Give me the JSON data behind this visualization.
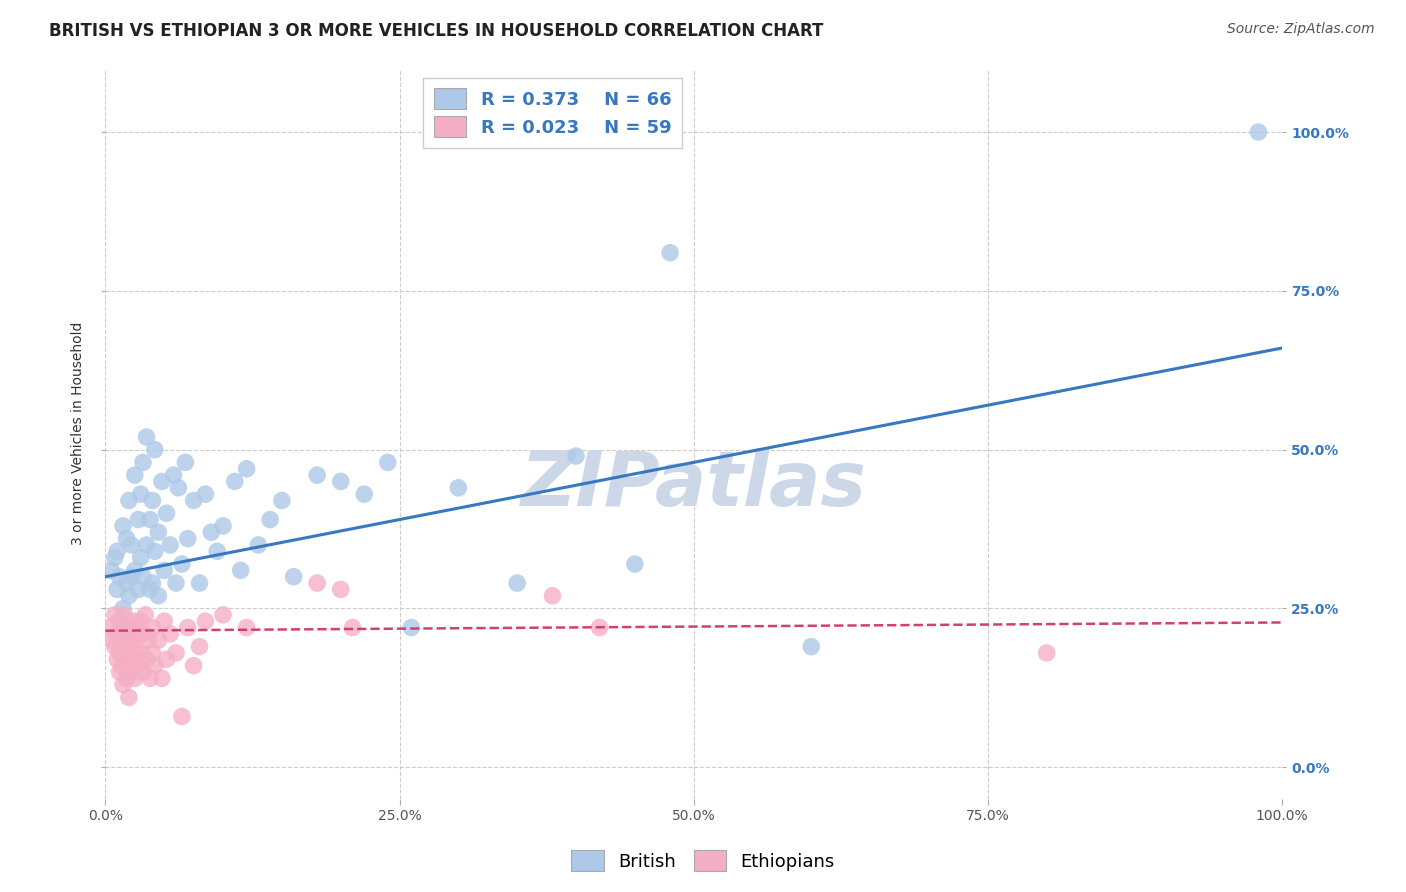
{
  "title": "BRITISH VS ETHIOPIAN 3 OR MORE VEHICLES IN HOUSEHOLD CORRELATION CHART",
  "source": "Source: ZipAtlas.com",
  "ylabel": "3 or more Vehicles in Household",
  "xlim": [
    0,
    1
  ],
  "ylim": [
    -0.05,
    1.1
  ],
  "ytick_labels": [
    "0.0%",
    "25.0%",
    "50.0%",
    "75.0%",
    "100.0%"
  ],
  "ytick_values": [
    0.0,
    0.25,
    0.5,
    0.75,
    1.0
  ],
  "watermark": "ZIPatlas",
  "british_R": 0.373,
  "british_N": 66,
  "ethiopian_R": 0.023,
  "ethiopian_N": 59,
  "british_color": "#adc8e8",
  "ethiopian_color": "#f5afc5",
  "british_line_color": "#3878c0",
  "ethiopian_line_color": "#d04070",
  "british_scatter_x": [
    0.005,
    0.008,
    0.01,
    0.01,
    0.012,
    0.015,
    0.015,
    0.018,
    0.018,
    0.02,
    0.02,
    0.022,
    0.022,
    0.025,
    0.025,
    0.028,
    0.028,
    0.03,
    0.03,
    0.032,
    0.032,
    0.035,
    0.035,
    0.038,
    0.038,
    0.04,
    0.04,
    0.042,
    0.042,
    0.045,
    0.045,
    0.048,
    0.05,
    0.052,
    0.055,
    0.058,
    0.06,
    0.062,
    0.065,
    0.068,
    0.07,
    0.075,
    0.08,
    0.085,
    0.09,
    0.095,
    0.1,
    0.11,
    0.115,
    0.12,
    0.13,
    0.14,
    0.15,
    0.16,
    0.18,
    0.2,
    0.22,
    0.24,
    0.26,
    0.3,
    0.35,
    0.4,
    0.45,
    0.48,
    0.6,
    0.98
  ],
  "british_scatter_y": [
    0.31,
    0.33,
    0.28,
    0.34,
    0.3,
    0.25,
    0.38,
    0.29,
    0.36,
    0.27,
    0.42,
    0.3,
    0.35,
    0.31,
    0.46,
    0.28,
    0.39,
    0.33,
    0.43,
    0.3,
    0.48,
    0.35,
    0.52,
    0.28,
    0.39,
    0.29,
    0.42,
    0.34,
    0.5,
    0.27,
    0.37,
    0.45,
    0.31,
    0.4,
    0.35,
    0.46,
    0.29,
    0.44,
    0.32,
    0.48,
    0.36,
    0.42,
    0.29,
    0.43,
    0.37,
    0.34,
    0.38,
    0.45,
    0.31,
    0.47,
    0.35,
    0.39,
    0.42,
    0.3,
    0.46,
    0.45,
    0.43,
    0.48,
    0.22,
    0.44,
    0.29,
    0.49,
    0.32,
    0.81,
    0.19,
    1.0
  ],
  "ethiopian_scatter_x": [
    0.004,
    0.006,
    0.008,
    0.008,
    0.01,
    0.01,
    0.012,
    0.012,
    0.012,
    0.014,
    0.014,
    0.015,
    0.015,
    0.016,
    0.016,
    0.018,
    0.018,
    0.02,
    0.02,
    0.02,
    0.022,
    0.022,
    0.024,
    0.024,
    0.025,
    0.025,
    0.026,
    0.028,
    0.028,
    0.03,
    0.03,
    0.032,
    0.032,
    0.034,
    0.035,
    0.036,
    0.038,
    0.04,
    0.04,
    0.042,
    0.045,
    0.048,
    0.05,
    0.052,
    0.055,
    0.06,
    0.065,
    0.07,
    0.075,
    0.08,
    0.085,
    0.1,
    0.12,
    0.18,
    0.2,
    0.21,
    0.38,
    0.42,
    0.8
  ],
  "ethiopian_scatter_y": [
    0.22,
    0.2,
    0.24,
    0.19,
    0.21,
    0.17,
    0.23,
    0.18,
    0.15,
    0.22,
    0.16,
    0.2,
    0.13,
    0.24,
    0.17,
    0.21,
    0.14,
    0.22,
    0.18,
    0.11,
    0.2,
    0.15,
    0.23,
    0.17,
    0.2,
    0.14,
    0.18,
    0.22,
    0.16,
    0.23,
    0.18,
    0.21,
    0.15,
    0.24,
    0.17,
    0.2,
    0.14,
    0.22,
    0.18,
    0.16,
    0.2,
    0.14,
    0.23,
    0.17,
    0.21,
    0.18,
    0.08,
    0.22,
    0.16,
    0.19,
    0.23,
    0.24,
    0.22,
    0.29,
    0.28,
    0.22,
    0.27,
    0.22,
    0.18
  ],
  "british_line_y0": 0.3,
  "british_line_y1": 0.66,
  "ethiopian_line_y0": 0.215,
  "ethiopian_line_y1": 0.228,
  "background_color": "#ffffff",
  "grid_color": "#cccccc",
  "title_fontsize": 12,
  "axis_label_fontsize": 10,
  "tick_fontsize": 10,
  "legend_fontsize": 13,
  "source_fontsize": 10,
  "legend_text_color": "#3878c0",
  "watermark_color": "#ccd8e8",
  "watermark_fontsize": 55
}
